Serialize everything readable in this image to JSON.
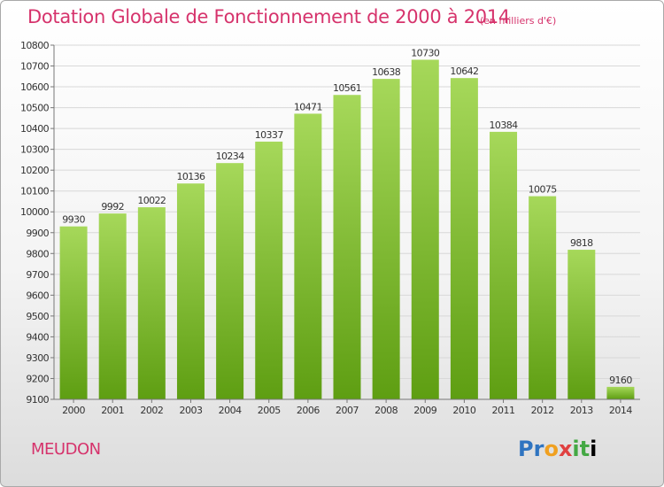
{
  "title": "Dotation Globale de Fonctionnement de 2000 à 2014",
  "subtitle": "(en milliers d'€)",
  "city": "MEUDON",
  "logo": "Proxiti",
  "colors": {
    "title": "#d6336c",
    "bar_top": "#a6d85a",
    "bar_bottom": "#5e9e12",
    "grid": "#d8d8d8"
  },
  "chart_data": {
    "type": "bar",
    "title": "Dotation Globale de Fonctionnement de 2000 à 2014",
    "subtitle": "(en milliers d'€)",
    "categories": [
      "2000",
      "2001",
      "2002",
      "2003",
      "2004",
      "2005",
      "2006",
      "2007",
      "2008",
      "2009",
      "2010",
      "2011",
      "2012",
      "2013",
      "2014"
    ],
    "values": [
      9930,
      9992,
      10022,
      10136,
      10234,
      10337,
      10471,
      10561,
      10638,
      10730,
      10642,
      10384,
      10075,
      9818,
      9160
    ],
    "ylim": [
      9100,
      10800
    ],
    "yticks": [
      9100,
      9200,
      9300,
      9400,
      9500,
      9600,
      9700,
      9800,
      9900,
      10000,
      10100,
      10200,
      10300,
      10400,
      10500,
      10600,
      10700,
      10800
    ],
    "xlabel": "",
    "ylabel": "",
    "grid": true,
    "legend": "none"
  }
}
